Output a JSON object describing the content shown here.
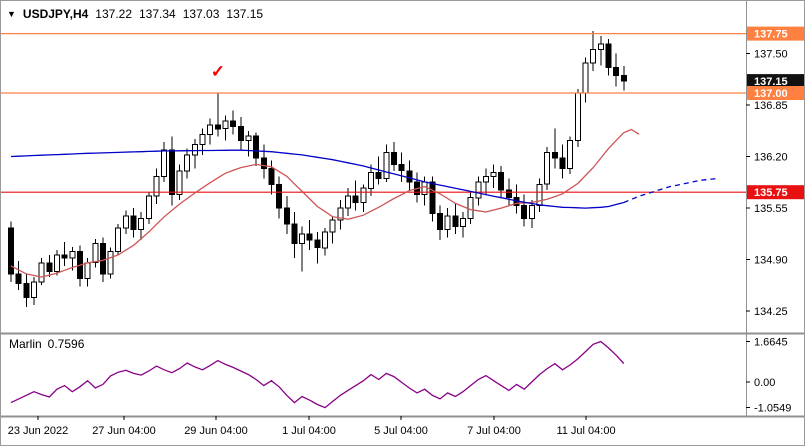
{
  "header": {
    "dropdown_icon": "▼",
    "symbol": "USDJPY,H4",
    "open": "137.22",
    "high": "137.34",
    "low": "137.03",
    "close": "137.15"
  },
  "chart_data": {
    "type": "candlestick",
    "symbol": "USDJPY",
    "timeframe": "H4",
    "title": "USDJPY,H4",
    "current_ohlc": {
      "open": 137.22,
      "high": 137.34,
      "low": 137.03,
      "close": 137.15
    },
    "price_axis": {
      "ylim": [
        134.0,
        138.11
      ],
      "ticks": [
        137.5,
        136.85,
        136.2,
        135.55,
        134.9,
        134.25
      ],
      "badges": [
        {
          "price": 137.75,
          "color": "#ff8040",
          "text_color": "#ffffff"
        },
        {
          "price": 137.15,
          "color": "#111111",
          "text_color": "#ffffff"
        },
        {
          "price": 137.0,
          "color": "#ff8040",
          "text_color": "#ffffff"
        },
        {
          "price": 135.75,
          "color": "#e81010",
          "text_color": "#ffffff"
        }
      ]
    },
    "hlines": [
      {
        "price": 137.75,
        "color": "#ff8040"
      },
      {
        "price": 137.0,
        "color": "#ff8040"
      },
      {
        "price": 135.75,
        "color": "#e81010"
      }
    ],
    "time_axis": {
      "labels": [
        "23 Jun 2022",
        "27 Jun 04:00",
        "29 Jun 04:00",
        "1 Jul 04:00",
        "5 Jul 04:00",
        "7 Jul 04:00",
        "11 Jul 04:00"
      ]
    },
    "candles": [
      [
        135.3,
        135.38,
        134.62,
        134.72
      ],
      [
        134.72,
        134.88,
        134.52,
        134.6
      ],
      [
        134.6,
        134.72,
        134.3,
        134.42
      ],
      [
        134.42,
        134.68,
        134.33,
        134.62
      ],
      [
        134.62,
        134.92,
        134.58,
        134.86
      ],
      [
        134.86,
        134.96,
        134.68,
        134.75
      ],
      [
        134.75,
        135.02,
        134.7,
        134.96
      ],
      [
        134.96,
        135.12,
        134.82,
        134.92
      ],
      [
        134.92,
        135.06,
        134.76,
        135.0
      ],
      [
        135.0,
        135.08,
        134.56,
        134.66
      ],
      [
        134.66,
        134.92,
        134.56,
        134.86
      ],
      [
        134.86,
        135.16,
        134.8,
        135.1
      ],
      [
        135.1,
        135.18,
        134.62,
        134.72
      ],
      [
        134.72,
        135.05,
        134.66,
        135.0
      ],
      [
        135.0,
        135.35,
        134.95,
        135.3
      ],
      [
        135.3,
        135.52,
        135.22,
        135.45
      ],
      [
        135.45,
        135.55,
        135.18,
        135.28
      ],
      [
        135.28,
        135.5,
        135.15,
        135.42
      ],
      [
        135.42,
        135.75,
        135.35,
        135.7
      ],
      [
        135.7,
        136.05,
        135.6,
        135.95
      ],
      [
        135.95,
        136.38,
        135.88,
        136.28
      ],
      [
        136.28,
        136.45,
        135.58,
        135.72
      ],
      [
        135.72,
        136.1,
        135.65,
        136.02
      ],
      [
        136.02,
        136.3,
        135.92,
        136.22
      ],
      [
        136.22,
        136.42,
        136.05,
        136.35
      ],
      [
        136.35,
        136.55,
        136.22,
        136.48
      ],
      [
        136.48,
        136.68,
        136.35,
        136.6
      ],
      [
        136.6,
        137.0,
        136.45,
        136.55
      ],
      [
        136.55,
        136.72,
        136.4,
        136.65
      ],
      [
        136.65,
        136.78,
        136.48,
        136.58
      ],
      [
        136.58,
        136.7,
        136.28,
        136.4
      ],
      [
        136.4,
        136.52,
        136.2,
        136.46
      ],
      [
        136.46,
        136.5,
        136.08,
        136.18
      ],
      [
        136.18,
        136.35,
        135.92,
        136.05
      ],
      [
        136.05,
        136.15,
        135.72,
        135.85
      ],
      [
        135.85,
        135.95,
        135.42,
        135.55
      ],
      [
        135.55,
        135.7,
        135.22,
        135.35
      ],
      [
        135.35,
        135.5,
        134.92,
        135.1
      ],
      [
        135.1,
        135.32,
        134.75,
        135.22
      ],
      [
        135.22,
        135.4,
        135.02,
        135.15
      ],
      [
        135.15,
        135.25,
        134.85,
        135.05
      ],
      [
        135.05,
        135.3,
        134.95,
        135.25
      ],
      [
        135.25,
        135.45,
        135.1,
        135.4
      ],
      [
        135.4,
        135.65,
        135.28,
        135.55
      ],
      [
        135.55,
        135.8,
        135.45,
        135.7
      ],
      [
        135.7,
        135.9,
        135.52,
        135.62
      ],
      [
        135.62,
        135.85,
        135.5,
        135.8
      ],
      [
        135.8,
        136.1,
        135.7,
        136.0
      ],
      [
        136.0,
        136.2,
        135.85,
        135.92
      ],
      [
        135.92,
        136.35,
        135.88,
        136.25
      ],
      [
        136.25,
        136.38,
        136.02,
        136.1
      ],
      [
        136.1,
        136.25,
        135.88,
        136.02
      ],
      [
        136.02,
        136.15,
        135.78,
        135.88
      ],
      [
        135.88,
        136.0,
        135.62,
        135.72
      ],
      [
        135.72,
        135.95,
        135.58,
        135.88
      ],
      [
        135.88,
        135.95,
        135.38,
        135.48
      ],
      [
        135.48,
        135.58,
        135.15,
        135.28
      ],
      [
        135.28,
        135.55,
        135.18,
        135.45
      ],
      [
        135.45,
        135.6,
        135.22,
        135.32
      ],
      [
        135.32,
        135.5,
        135.18,
        135.42
      ],
      [
        135.42,
        135.75,
        135.35,
        135.68
      ],
      [
        135.68,
        135.95,
        135.58,
        135.88
      ],
      [
        135.88,
        136.05,
        135.72,
        135.95
      ],
      [
        135.95,
        136.1,
        135.8,
        136.0
      ],
      [
        136.0,
        136.08,
        135.68,
        135.78
      ],
      [
        135.78,
        135.92,
        135.58,
        135.68
      ],
      [
        135.68,
        135.85,
        135.48,
        135.58
      ],
      [
        135.58,
        135.72,
        135.32,
        135.42
      ],
      [
        135.42,
        135.65,
        135.3,
        135.58
      ],
      [
        135.58,
        135.92,
        135.5,
        135.85
      ],
      [
        135.85,
        136.32,
        135.78,
        136.25
      ],
      [
        136.25,
        136.55,
        136.05,
        136.18
      ],
      [
        136.18,
        136.35,
        135.92,
        136.05
      ],
      [
        136.05,
        136.45,
        135.98,
        136.4
      ],
      [
        136.4,
        137.05,
        136.32,
        137.0
      ],
      [
        137.0,
        137.45,
        136.88,
        137.38
      ],
      [
        137.38,
        137.78,
        137.28,
        137.55
      ],
      [
        137.55,
        137.72,
        137.35,
        137.62
      ],
      [
        137.62,
        137.68,
        137.22,
        137.32
      ],
      [
        137.32,
        137.5,
        137.08,
        137.22
      ],
      [
        137.22,
        137.34,
        137.03,
        137.15
      ]
    ],
    "ma_blue": {
      "name": "slow-ma",
      "color": "#0000c8",
      "values": [
        136.2,
        136.204,
        136.208,
        136.212,
        136.216,
        136.22,
        136.224,
        136.228,
        136.232,
        136.236,
        136.24,
        136.243,
        136.246,
        136.249,
        136.252,
        136.255,
        136.258,
        136.261,
        136.264,
        136.267,
        136.27,
        136.271,
        136.272,
        136.273,
        136.274,
        136.275,
        136.276,
        136.277,
        136.278,
        136.279,
        136.28,
        136.275,
        136.27,
        136.265,
        136.26,
        136.25,
        136.24,
        136.23,
        136.22,
        136.205,
        136.19,
        136.175,
        136.16,
        136.14,
        136.12,
        136.1,
        136.08,
        136.055,
        136.03,
        136.005,
        135.98,
        135.955,
        135.93,
        135.905,
        135.88,
        135.86,
        135.84,
        135.82,
        135.8,
        135.78,
        135.76,
        135.74,
        135.72,
        135.7,
        135.68,
        135.66,
        135.64,
        135.623,
        135.607,
        135.59,
        135.58,
        135.57,
        135.56,
        135.557,
        135.553,
        135.55,
        135.555,
        135.56,
        135.57,
        135.595,
        135.62
      ],
      "dash_values": [
        135.62,
        135.66,
        135.7,
        135.73,
        135.76,
        135.79,
        135.82,
        135.84,
        135.86,
        135.88,
        135.9,
        135.91,
        135.92
      ]
    },
    "ma_red": {
      "name": "fast-ma",
      "color": "#cd5555",
      "values": [
        134.82,
        134.77,
        134.72,
        134.7,
        134.68,
        134.705,
        134.73,
        134.765,
        134.8,
        134.83,
        134.86,
        134.875,
        134.89,
        134.925,
        134.96,
        135.02,
        135.08,
        135.165,
        135.25,
        135.345,
        135.44,
        135.52,
        135.6,
        135.67,
        135.74,
        135.805,
        135.87,
        135.93,
        135.99,
        136.025,
        136.06,
        136.08,
        136.1,
        136.085,
        136.07,
        136.01,
        135.95,
        135.855,
        135.76,
        135.665,
        135.57,
        135.505,
        135.44,
        135.425,
        135.41,
        135.435,
        135.46,
        135.51,
        135.56,
        135.615,
        135.67,
        135.72,
        135.77,
        135.795,
        135.82,
        135.775,
        135.73,
        135.67,
        135.61,
        135.57,
        135.53,
        135.515,
        135.5,
        135.525,
        135.55,
        135.58,
        135.61,
        135.615,
        135.62,
        135.64,
        135.66,
        135.695,
        135.73,
        135.795,
        135.86,
        135.96,
        136.06,
        136.18,
        136.3,
        136.4,
        136.5,
        136.54,
        136.48
      ]
    },
    "annotations": {
      "checkmark": {
        "candle_index": 27,
        "price": 137.2,
        "glyph": "✓",
        "color": "#ff0000"
      }
    },
    "indicator": {
      "name": "Marlin",
      "value_display": "0.7596",
      "value": 0.7596,
      "color": "#880088",
      "ylim": [
        -1.32,
        1.85
      ],
      "axis_ticks": [
        {
          "value": 1.6645,
          "label": "1.6645"
        },
        {
          "value": 0.0,
          "label": "0.00"
        },
        {
          "value": -1.0549,
          "label": "-1.0549"
        }
      ],
      "values": [
        -0.85,
        -0.7,
        -0.55,
        -0.4,
        -0.52,
        -0.62,
        -0.3,
        -0.15,
        -0.4,
        -0.2,
        0.05,
        -0.25,
        -0.1,
        0.25,
        0.4,
        0.48,
        0.35,
        0.28,
        0.45,
        0.65,
        0.5,
        0.38,
        0.55,
        0.78,
        0.62,
        0.5,
        0.68,
        0.88,
        0.72,
        0.6,
        0.45,
        0.3,
        0.1,
        -0.15,
        0.05,
        -0.2,
        -0.55,
        -0.85,
        -0.6,
        -0.75,
        -0.93,
        -1.0549,
        -0.8,
        -0.55,
        -0.35,
        -0.15,
        0.05,
        0.3,
        0.1,
        0.35,
        0.22,
        -0.02,
        -0.25,
        -0.45,
        -0.3,
        -0.55,
        -0.7,
        -0.45,
        -0.6,
        -0.4,
        -0.15,
        0.1,
        0.26,
        0.05,
        -0.15,
        -0.35,
        -0.1,
        -0.3,
        0.0,
        0.3,
        0.55,
        0.75,
        0.5,
        0.7,
        0.95,
        1.25,
        1.55,
        1.6645,
        1.4,
        1.1,
        0.7596
      ]
    },
    "colors": {
      "background": "#ffffff",
      "candle_up": "#ffffff",
      "candle_down": "#000000",
      "outline": "#000000",
      "axis_text": "#000000",
      "separator": "#909090"
    }
  }
}
